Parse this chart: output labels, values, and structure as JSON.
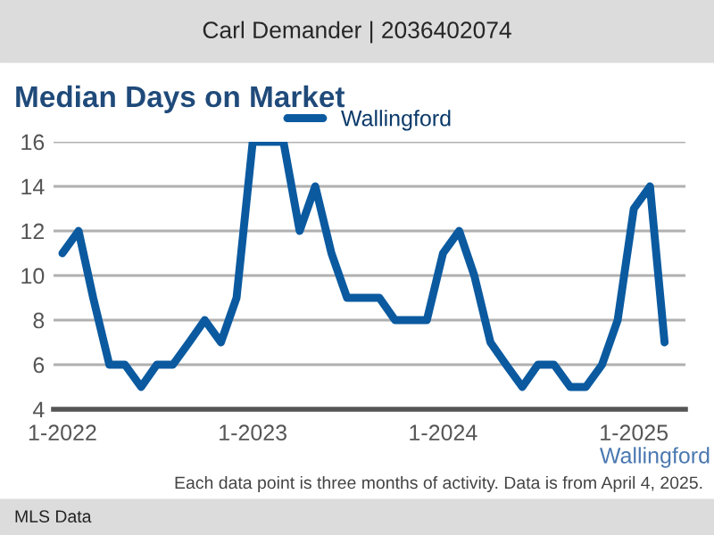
{
  "chart_data": {
    "type": "line",
    "title": "Median Days on Market",
    "x": [
      "2022-01",
      "2022-02",
      "2022-03",
      "2022-04",
      "2022-05",
      "2022-06",
      "2022-07",
      "2022-08",
      "2022-09",
      "2022-10",
      "2022-11",
      "2022-12",
      "2023-01",
      "2023-02",
      "2023-03",
      "2023-04",
      "2023-05",
      "2023-06",
      "2023-07",
      "2023-08",
      "2023-09",
      "2023-10",
      "2023-11",
      "2023-12",
      "2024-01",
      "2024-02",
      "2024-03",
      "2024-04",
      "2024-05",
      "2024-06",
      "2024-07",
      "2024-08",
      "2024-09",
      "2024-10",
      "2024-11",
      "2024-12",
      "2025-01",
      "2025-02",
      "2025-03"
    ],
    "series": [
      {
        "name": "Wallingford",
        "color": "#0b5aa0",
        "values": [
          11,
          12,
          9,
          6,
          6,
          5,
          6,
          6,
          7,
          8,
          7,
          9,
          16,
          16,
          16,
          12,
          14,
          11,
          9,
          9,
          9,
          8,
          8,
          8,
          11,
          12,
          10,
          7,
          6,
          5,
          6,
          6,
          5,
          5,
          6,
          8,
          13,
          14,
          7
        ]
      }
    ],
    "xlim": [
      "2021-12-15",
      "2025-04-10"
    ],
    "xticks": [
      {
        "value": "2022-01",
        "label": "1-2022"
      },
      {
        "value": "2023-01",
        "label": "1-2023"
      },
      {
        "value": "2024-01",
        "label": "1-2024"
      },
      {
        "value": "2025-01",
        "label": "1-2025"
      }
    ],
    "ylim": [
      4,
      16
    ],
    "yticks": [
      4,
      6,
      8,
      10,
      12,
      14,
      16
    ],
    "grid": "y",
    "legend": "top",
    "marker": "none",
    "line_style": "solid",
    "annotations": [
      "Carl Demander | 2036402074",
      "Wallingford",
      "Each data point is three months of activity. Data is from April 4, 2025.",
      "MLS Data"
    ]
  }
}
